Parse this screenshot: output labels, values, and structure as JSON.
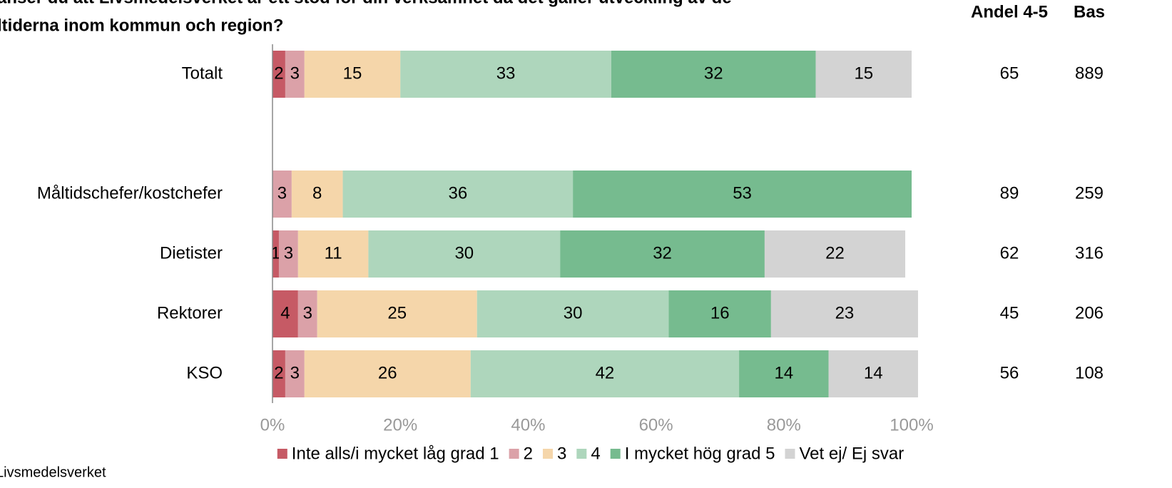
{
  "chart_data": {
    "type": "stacked_bar_horizontal",
    "title": [
      "anser du att Livsmedelsverket är ett stöd för din verksamhet då det gäller utveckling av de",
      "ltiderna inom kommun och region?"
    ],
    "categories": [
      "Totalt",
      null,
      "Måltidschefer/kostchefer",
      "Dietister",
      "Rektorer",
      "KSO"
    ],
    "series": [
      {
        "name": "Inte alls/i mycket låg grad 1",
        "color": "#c65a65",
        "values": [
          2,
          null,
          null,
          1,
          4,
          2
        ]
      },
      {
        "name": "2",
        "color": "#dba1a8",
        "values": [
          3,
          null,
          3,
          3,
          3,
          3
        ]
      },
      {
        "name": "3",
        "color": "#f5d6aa",
        "values": [
          15,
          null,
          8,
          11,
          25,
          26
        ]
      },
      {
        "name": "4",
        "color": "#aed6bc",
        "values": [
          33,
          null,
          36,
          30,
          30,
          42
        ]
      },
      {
        "name": "I mycket hög grad 5",
        "color": "#76bb8f",
        "values": [
          32,
          null,
          53,
          32,
          16,
          14
        ]
      },
      {
        "name": "Vet ej/ Ej svar",
        "color": "#d3d3d3",
        "values": [
          15,
          null,
          null,
          22,
          23,
          14
        ]
      }
    ],
    "xlim": [
      0,
      100
    ],
    "xticks": [
      {
        "value": 0,
        "label": "0%"
      },
      {
        "value": 20,
        "label": "20%"
      },
      {
        "value": 40,
        "label": "40%"
      },
      {
        "value": 60,
        "label": "60%"
      },
      {
        "value": 80,
        "label": "80%"
      },
      {
        "value": 100,
        "label": "100%"
      }
    ],
    "columns": [
      {
        "name": "Andel 4-5",
        "values": [
          65,
          null,
          89,
          62,
          45,
          56
        ]
      },
      {
        "name": "Bas",
        "values": [
          889,
          null,
          259,
          316,
          206,
          108
        ]
      }
    ],
    "source": "Livsmedelsverket",
    "legend": "bottom"
  }
}
